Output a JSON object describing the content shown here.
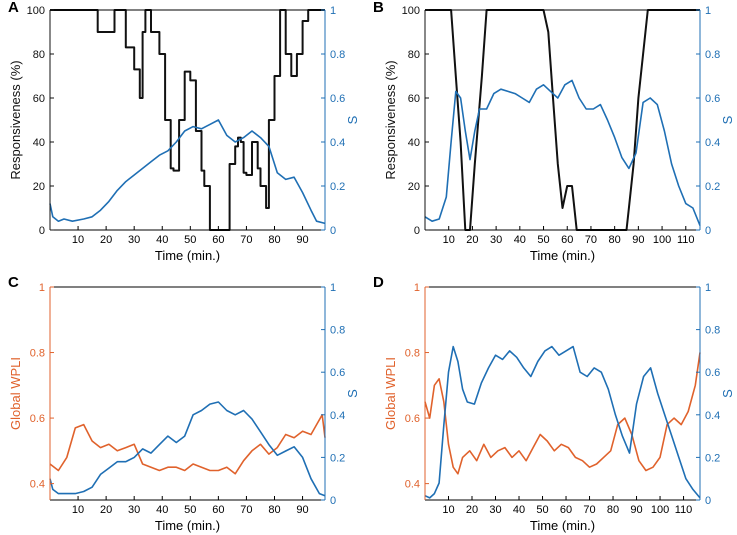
{
  "colors": {
    "black": "#111111",
    "blue": "#1f6fb4",
    "orange": "#e0622c"
  },
  "chart_data": [
    {
      "panel": "A",
      "type": "line",
      "xlabel": "Time (min.)",
      "ylabel_left": "Responsiveness (%)",
      "ylabel_right": "S",
      "xlim": [
        0,
        98
      ],
      "ylim_left": [
        0,
        100
      ],
      "ylim_right": [
        0,
        1
      ],
      "xticks": [
        10,
        20,
        30,
        40,
        50,
        60,
        70,
        80,
        90
      ],
      "yticks_left": [
        "0",
        "20",
        "40",
        "60",
        "80",
        "100"
      ],
      "yticks_right": [
        "0",
        "0.2",
        "0.4",
        "0.6",
        "0.8",
        "1"
      ],
      "series": [
        {
          "name": "Responsiveness",
          "axis": "left",
          "color": "black",
          "step": true,
          "x": [
            0,
            17,
            20,
            23,
            25,
            27,
            30,
            32,
            33,
            34,
            36,
            38,
            39,
            41,
            43,
            44,
            46,
            48,
            50,
            52,
            54,
            55,
            57,
            59,
            61,
            62,
            64,
            66,
            67,
            68,
            69,
            70,
            72,
            74,
            75,
            77,
            78,
            80,
            82,
            84,
            86,
            88,
            90,
            92,
            98
          ],
          "values": [
            100,
            90,
            90,
            100,
            100,
            83,
            73,
            60,
            90,
            100,
            90,
            90,
            80,
            50,
            28,
            27,
            50,
            72,
            68,
            45,
            27,
            20,
            0,
            0,
            0,
            0,
            30,
            38,
            42,
            40,
            26,
            25,
            40,
            28,
            20,
            10,
            50,
            70,
            100,
            80,
            70,
            80,
            95,
            100,
            100
          ]
        },
        {
          "name": "S",
          "axis": "right",
          "color": "blue",
          "x": [
            0,
            1,
            3,
            5,
            8,
            12,
            15,
            18,
            21,
            24,
            27,
            30,
            33,
            36,
            39,
            42,
            45,
            48,
            51,
            54,
            57,
            60,
            63,
            66,
            69,
            72,
            75,
            78,
            81,
            84,
            87,
            90,
            93,
            95,
            98
          ],
          "values": [
            0.12,
            0.06,
            0.04,
            0.05,
            0.04,
            0.05,
            0.06,
            0.09,
            0.13,
            0.18,
            0.22,
            0.25,
            0.28,
            0.31,
            0.34,
            0.36,
            0.4,
            0.45,
            0.47,
            0.46,
            0.48,
            0.5,
            0.43,
            0.4,
            0.42,
            0.45,
            0.42,
            0.38,
            0.26,
            0.23,
            0.24,
            0.17,
            0.09,
            0.04,
            0.03
          ]
        }
      ]
    },
    {
      "panel": "B",
      "type": "line",
      "xlabel": "Time (min.)",
      "ylabel_left": "Responsiveness (%)",
      "ylabel_right": "S",
      "xlim": [
        0,
        116
      ],
      "ylim_left": [
        0,
        100
      ],
      "ylim_right": [
        0,
        1
      ],
      "xticks": [
        10,
        20,
        30,
        40,
        50,
        60,
        70,
        80,
        90,
        100,
        110
      ],
      "yticks_left": [
        "0",
        "20",
        "40",
        "60",
        "80",
        "100"
      ],
      "yticks_right": [
        "0",
        "0.2",
        "0.4",
        "0.6",
        "0.8",
        "1"
      ],
      "series": [
        {
          "name": "Responsiveness",
          "axis": "left",
          "color": "black",
          "step": false,
          "x": [
            0,
            11,
            13,
            15,
            17,
            19,
            21,
            24,
            26,
            28,
            30,
            35,
            40,
            45,
            50,
            52,
            54,
            56,
            58,
            60,
            62,
            64,
            70,
            80,
            85,
            86,
            88,
            90,
            92,
            94,
            116
          ],
          "values": [
            100,
            100,
            70,
            40,
            0,
            0,
            30,
            70,
            100,
            100,
            100,
            100,
            100,
            100,
            100,
            90,
            60,
            30,
            10,
            20,
            20,
            0,
            0,
            0,
            0,
            10,
            30,
            60,
            80,
            100,
            100
          ]
        },
        {
          "name": "S",
          "axis": "right",
          "color": "blue",
          "x": [
            0,
            3,
            6,
            9,
            11,
            13,
            15,
            17,
            19,
            21,
            23,
            26,
            29,
            32,
            35,
            38,
            41,
            44,
            47,
            50,
            53,
            56,
            59,
            62,
            65,
            68,
            71,
            74,
            77,
            80,
            83,
            86,
            89,
            92,
            95,
            98,
            101,
            104,
            107,
            110,
            113,
            116
          ],
          "values": [
            0.06,
            0.04,
            0.05,
            0.15,
            0.4,
            0.63,
            0.6,
            0.45,
            0.32,
            0.45,
            0.55,
            0.55,
            0.62,
            0.64,
            0.63,
            0.62,
            0.6,
            0.58,
            0.64,
            0.66,
            0.63,
            0.6,
            0.66,
            0.68,
            0.6,
            0.55,
            0.55,
            0.57,
            0.5,
            0.42,
            0.33,
            0.28,
            0.35,
            0.58,
            0.6,
            0.57,
            0.45,
            0.3,
            0.2,
            0.12,
            0.1,
            0.02
          ]
        }
      ]
    },
    {
      "panel": "C",
      "type": "line",
      "xlabel": "Time (min.)",
      "ylabel_left": "Global WPLI",
      "ylabel_right": "S",
      "xlim": [
        0,
        98
      ],
      "ylim_left": [
        0.35,
        1
      ],
      "ylim_right": [
        0,
        1
      ],
      "xticks": [
        10,
        20,
        30,
        40,
        50,
        60,
        70,
        80,
        90
      ],
      "yticks_left": [
        "0.4",
        "0.6",
        "0.8",
        "1"
      ],
      "yticks_right": [
        "0",
        "0.2",
        "0.4",
        "0.6",
        "0.8",
        "1"
      ],
      "series": [
        {
          "name": "Global WPLI",
          "axis": "left",
          "color": "orange",
          "x": [
            0,
            3,
            6,
            9,
            12,
            15,
            18,
            21,
            24,
            27,
            30,
            33,
            36,
            39,
            42,
            45,
            48,
            51,
            54,
            57,
            60,
            63,
            66,
            69,
            72,
            75,
            78,
            81,
            84,
            87,
            90,
            93,
            95,
            97,
            98
          ],
          "values": [
            0.46,
            0.44,
            0.48,
            0.57,
            0.58,
            0.53,
            0.51,
            0.52,
            0.5,
            0.51,
            0.52,
            0.46,
            0.45,
            0.44,
            0.45,
            0.45,
            0.44,
            0.46,
            0.45,
            0.44,
            0.44,
            0.45,
            0.43,
            0.47,
            0.5,
            0.52,
            0.49,
            0.51,
            0.55,
            0.54,
            0.56,
            0.55,
            0.58,
            0.61,
            0.54
          ]
        },
        {
          "name": "S",
          "axis": "right",
          "color": "blue",
          "x": [
            0,
            1,
            3,
            6,
            9,
            12,
            15,
            18,
            21,
            24,
            27,
            30,
            33,
            36,
            39,
            42,
            45,
            48,
            51,
            54,
            57,
            60,
            63,
            66,
            69,
            72,
            75,
            78,
            81,
            84,
            87,
            90,
            93,
            96,
            98
          ],
          "values": [
            0.1,
            0.05,
            0.03,
            0.03,
            0.03,
            0.04,
            0.06,
            0.12,
            0.15,
            0.18,
            0.18,
            0.2,
            0.24,
            0.22,
            0.26,
            0.3,
            0.27,
            0.3,
            0.4,
            0.42,
            0.45,
            0.46,
            0.42,
            0.4,
            0.42,
            0.38,
            0.32,
            0.26,
            0.21,
            0.23,
            0.25,
            0.2,
            0.1,
            0.03,
            0.02
          ]
        }
      ]
    },
    {
      "panel": "D",
      "type": "line",
      "xlabel": "Time (min.)",
      "ylabel_left": "Global WPLI",
      "ylabel_right": "S",
      "xlim": [
        0,
        117
      ],
      "ylim_left": [
        0.35,
        1
      ],
      "ylim_right": [
        0,
        1
      ],
      "xticks": [
        10,
        20,
        30,
        40,
        50,
        60,
        70,
        80,
        90,
        100,
        110
      ],
      "yticks_left": [
        "0.4",
        "0.6",
        "0.8",
        "1"
      ],
      "yticks_right": [
        "0",
        "0.2",
        "0.4",
        "0.6",
        "0.8",
        "1"
      ],
      "series": [
        {
          "name": "Global WPLI",
          "axis": "left",
          "color": "orange",
          "x": [
            0,
            2,
            4,
            6,
            8,
            10,
            12,
            14,
            16,
            19,
            22,
            25,
            28,
            31,
            34,
            37,
            40,
            43,
            46,
            49,
            52,
            55,
            58,
            61,
            64,
            67,
            70,
            73,
            76,
            79,
            82,
            85,
            88,
            91,
            94,
            97,
            100,
            103,
            106,
            109,
            112,
            115,
            117
          ],
          "values": [
            0.65,
            0.6,
            0.7,
            0.72,
            0.65,
            0.52,
            0.45,
            0.43,
            0.48,
            0.5,
            0.47,
            0.52,
            0.48,
            0.5,
            0.51,
            0.48,
            0.5,
            0.47,
            0.51,
            0.55,
            0.53,
            0.5,
            0.52,
            0.51,
            0.48,
            0.47,
            0.45,
            0.46,
            0.48,
            0.5,
            0.58,
            0.6,
            0.55,
            0.47,
            0.44,
            0.45,
            0.48,
            0.58,
            0.6,
            0.58,
            0.62,
            0.7,
            0.8
          ]
        },
        {
          "name": "S",
          "axis": "right",
          "color": "blue",
          "x": [
            0,
            2,
            4,
            6,
            8,
            10,
            12,
            14,
            16,
            18,
            21,
            24,
            27,
            30,
            33,
            36,
            39,
            42,
            45,
            48,
            51,
            54,
            57,
            60,
            63,
            66,
            69,
            72,
            75,
            78,
            81,
            84,
            87,
            90,
            93,
            96,
            99,
            102,
            105,
            108,
            111,
            114,
            117
          ],
          "values": [
            0.02,
            0.01,
            0.03,
            0.08,
            0.35,
            0.6,
            0.72,
            0.65,
            0.52,
            0.46,
            0.45,
            0.55,
            0.62,
            0.68,
            0.66,
            0.7,
            0.67,
            0.62,
            0.58,
            0.65,
            0.7,
            0.72,
            0.68,
            0.7,
            0.72,
            0.6,
            0.58,
            0.62,
            0.6,
            0.52,
            0.4,
            0.3,
            0.22,
            0.45,
            0.58,
            0.62,
            0.5,
            0.4,
            0.3,
            0.2,
            0.1,
            0.05,
            0.01
          ]
        }
      ]
    }
  ]
}
